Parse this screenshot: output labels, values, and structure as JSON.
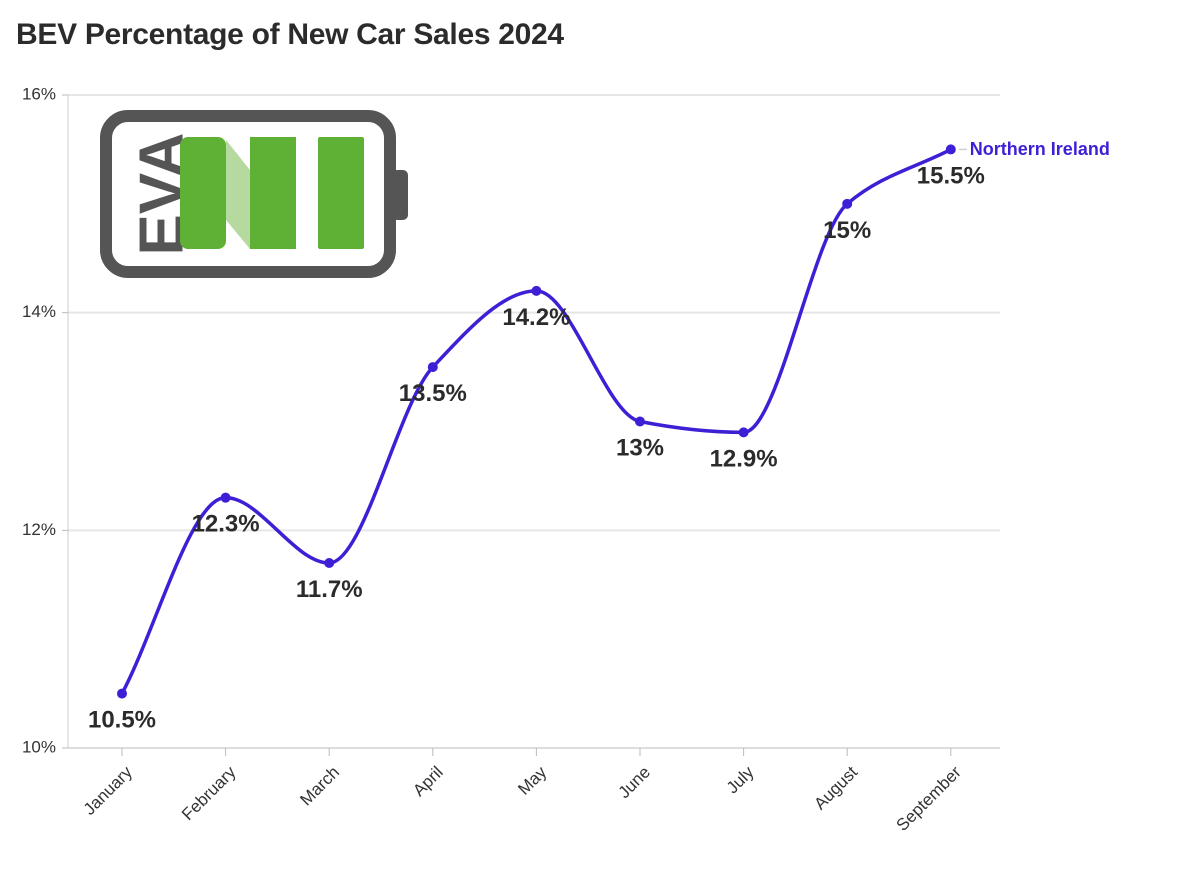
{
  "chart_data": {
    "type": "line",
    "title": "BEV Percentage of New Car Sales 2024",
    "categories": [
      "January",
      "February",
      "March",
      "April",
      "May",
      "June",
      "July",
      "August",
      "September"
    ],
    "series": [
      {
        "name": "Northern Ireland",
        "values": [
          10.5,
          12.3,
          11.7,
          13.5,
          14.2,
          13,
          12.9,
          15,
          15.5
        ],
        "labels": [
          "10.5%",
          "12.3%",
          "11.7%",
          "13.5%",
          "14.2%",
          "13%",
          "12.9%",
          "15%",
          "15.5%"
        ],
        "color": "#3f1fd6"
      }
    ],
    "y_ticks": [
      "10%",
      "12%",
      "14%",
      "16%"
    ],
    "ylim": [
      10,
      16
    ],
    "grid": true,
    "xlabel": "",
    "ylabel": ""
  },
  "logo": {
    "text": "EVA",
    "body_color": "#555555",
    "bar_color": "#5fb135",
    "bar_light_color": "#b6d9a0"
  }
}
